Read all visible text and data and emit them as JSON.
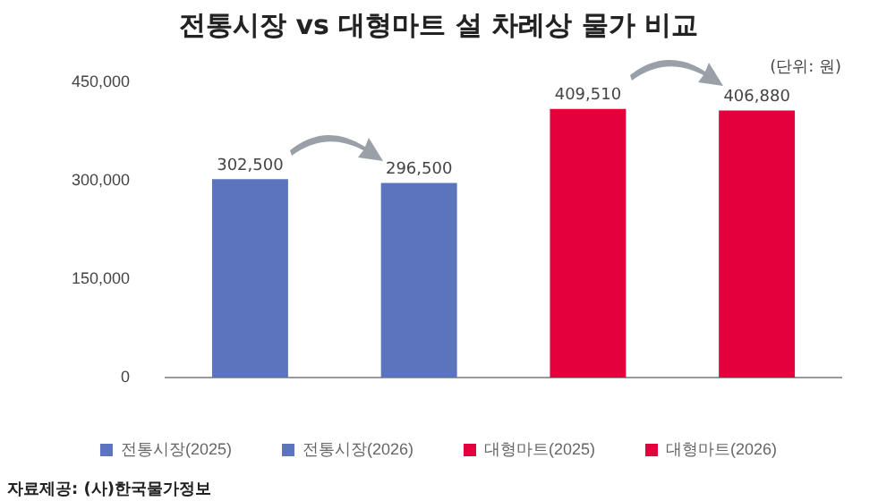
{
  "chart_data": {
    "type": "bar",
    "title": "전통시장 vs 대형마트 설 차례상 물가 비교",
    "categories": [
      null,
      null,
      null,
      null
    ],
    "series": [
      {
        "name": "전통시장(2025)",
        "color": "#5b74bd",
        "values": [
          302500,
          null,
          null,
          null
        ],
        "value_labels": [
          "302,500",
          null,
          null,
          null
        ]
      },
      {
        "name": "전통시장(2026)",
        "color": "#5b74bd",
        "values": [
          null,
          296500,
          null,
          null
        ],
        "value_labels": [
          null,
          "296,500",
          null,
          null
        ]
      },
      {
        "name": "대형마트(2025)",
        "color": "#e4003c",
        "values": [
          null,
          null,
          409510,
          null
        ],
        "value_labels": [
          null,
          null,
          "409,510",
          null
        ]
      },
      {
        "name": "대형마트(2026)",
        "color": "#e4003c",
        "values": [
          null,
          null,
          null,
          406880
        ],
        "value_labels": [
          null,
          null,
          null,
          "406,880"
        ]
      }
    ],
    "ylim": [
      0,
      450000
    ],
    "yticks": [
      0,
      {
        "value": 150000,
        "label": "150,000"
      },
      {
        "value": 300000,
        "label": "300,000"
      },
      {
        "value": 450000,
        "label": "450,000"
      }
    ],
    "legend": "bottom",
    "grid": false,
    "annotations": [
      "(단위: 원)",
      "자료제공: (사)한국물가정보"
    ]
  }
}
